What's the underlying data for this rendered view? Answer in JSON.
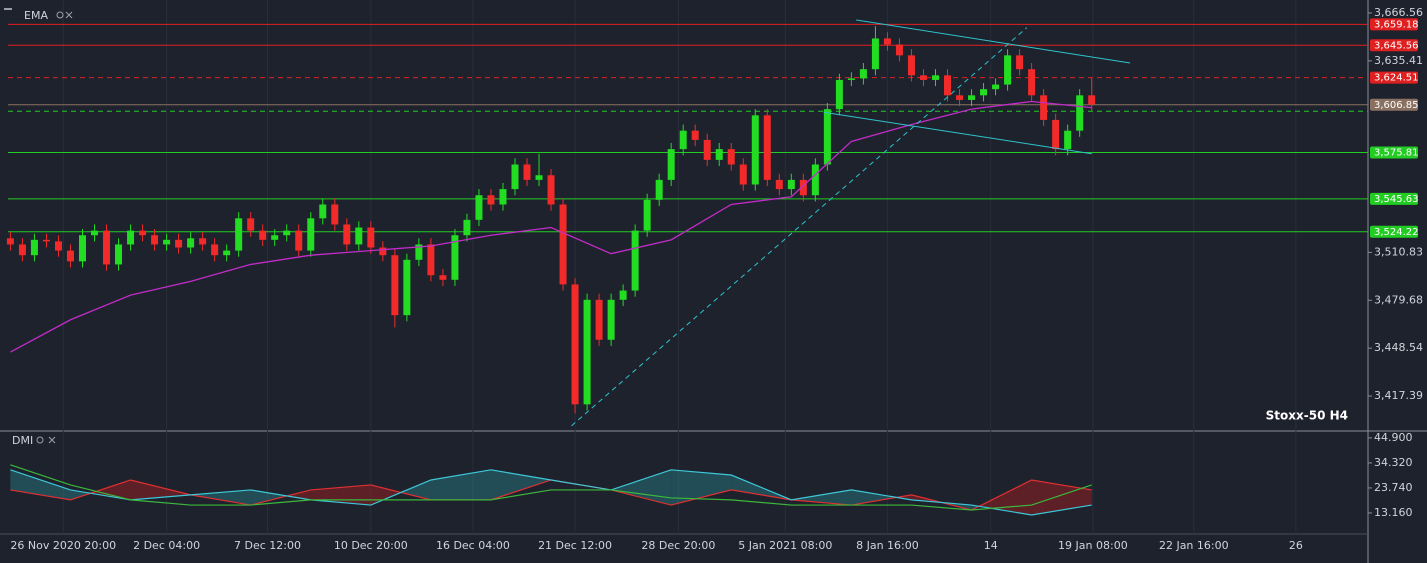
{
  "chart_data": [
    {
      "type": "candlestick",
      "title": "EMA",
      "annotation": "Stoxx-50 H4",
      "up_color": "#22dd22",
      "down_color": "#f22a2a",
      "open": [
        3520,
        3516,
        3509,
        3519,
        3518,
        3512,
        3505,
        3522,
        3525,
        3503,
        3516,
        3525,
        3522,
        3516,
        3519,
        3514,
        3520,
        3516,
        3509,
        3512,
        3533,
        3525,
        3519,
        3522,
        3525,
        3512,
        3533,
        3542,
        3529,
        3516,
        3527,
        3514,
        3509,
        3470,
        3506,
        3516,
        3496,
        3493,
        3522,
        3532,
        3548,
        3542,
        3552,
        3568,
        3558,
        3561,
        3542,
        3490,
        3412,
        3480,
        3454,
        3480,
        3486,
        3525,
        3545,
        3558,
        3578,
        3590,
        3584,
        3571,
        3578,
        3568,
        3555,
        3600,
        3558,
        3552,
        3558,
        3548,
        3568,
        3604,
        3623,
        3624,
        3630,
        3650,
        3646,
        3639,
        3626,
        3623,
        3626,
        3613,
        3610,
        3613,
        3617,
        3620,
        3639,
        3630,
        3613,
        3597,
        3578,
        3590,
        3613
      ],
      "high": [
        3524,
        3520,
        3523,
        3523,
        3522,
        3516,
        3526,
        3529,
        3529,
        3520,
        3529,
        3529,
        3526,
        3523,
        3523,
        3524,
        3524,
        3520,
        3516,
        3537,
        3537,
        3529,
        3526,
        3529,
        3529,
        3537,
        3546,
        3546,
        3533,
        3531,
        3531,
        3518,
        3513,
        3510,
        3520,
        3520,
        3500,
        3526,
        3536,
        3552,
        3552,
        3556,
        3572,
        3572,
        3575,
        3565,
        3546,
        3494,
        3484,
        3484,
        3484,
        3490,
        3529,
        3549,
        3562,
        3582,
        3594,
        3594,
        3588,
        3582,
        3582,
        3572,
        3604,
        3604,
        3562,
        3562,
        3562,
        3572,
        3608,
        3627,
        3628,
        3634,
        3658,
        3654,
        3650,
        3643,
        3630,
        3630,
        3630,
        3617,
        3617,
        3621,
        3624,
        3643,
        3643,
        3634,
        3617,
        3601,
        3594,
        3617,
        3624
      ],
      "low": [
        3512,
        3505,
        3505,
        3514,
        3508,
        3501,
        3501,
        3518,
        3499,
        3499,
        3512,
        3518,
        3512,
        3512,
        3510,
        3510,
        3512,
        3505,
        3505,
        3508,
        3521,
        3515,
        3515,
        3518,
        3508,
        3508,
        3529,
        3525,
        3512,
        3512,
        3510,
        3505,
        3462,
        3466,
        3502,
        3492,
        3489,
        3489,
        3518,
        3528,
        3538,
        3538,
        3548,
        3554,
        3554,
        3538,
        3486,
        3406,
        3408,
        3450,
        3450,
        3476,
        3482,
        3521,
        3541,
        3554,
        3574,
        3580,
        3567,
        3567,
        3564,
        3551,
        3551,
        3554,
        3548,
        3548,
        3544,
        3544,
        3564,
        3600,
        3619,
        3620,
        3626,
        3642,
        3635,
        3622,
        3619,
        3619,
        3609,
        3606,
        3606,
        3609,
        3613,
        3616,
        3626,
        3609,
        3593,
        3574,
        3574,
        3586,
        3603
      ],
      "close": [
        3516,
        3509,
        3519,
        3518,
        3512,
        3505,
        3522,
        3525,
        3503,
        3516,
        3525,
        3522,
        3516,
        3519,
        3514,
        3520,
        3516,
        3509,
        3512,
        3533,
        3525,
        3519,
        3522,
        3525,
        3512,
        3533,
        3542,
        3529,
        3516,
        3527,
        3514,
        3509,
        3470,
        3506,
        3516,
        3496,
        3493,
        3522,
        3532,
        3548,
        3542,
        3552,
        3568,
        3558,
        3561,
        3542,
        3490,
        3412,
        3480,
        3454,
        3480,
        3486,
        3525,
        3545,
        3558,
        3578,
        3590,
        3584,
        3571,
        3578,
        3568,
        3555,
        3600,
        3558,
        3552,
        3558,
        3548,
        3568,
        3604,
        3623,
        3624,
        3630,
        3650,
        3646,
        3639,
        3626,
        3623,
        3626,
        3613,
        3610,
        3613,
        3617,
        3620,
        3639,
        3630,
        3613,
        3597,
        3578,
        3590,
        3613,
        3607
      ],
      "ema": {
        "color": "#c22cc8",
        "x": [
          0,
          5,
          10,
          15,
          20,
          25,
          30,
          35,
          40,
          45,
          50,
          55,
          60,
          65,
          70,
          75,
          80,
          85,
          90
        ],
        "values": [
          3446,
          3467,
          3483,
          3492,
          3503,
          3509,
          3512,
          3515,
          3522,
          3527,
          3510,
          3519,
          3542,
          3547,
          3583,
          3594,
          3604,
          3609,
          3605
        ]
      },
      "levels": [
        {
          "value": 3659.18,
          "label": "3,659.18",
          "color": "#e02020",
          "dashed": false
        },
        {
          "value": 3645.56,
          "label": "3,645.56",
          "color": "#e02020",
          "dashed": false
        },
        {
          "value": 3624.51,
          "label": "3,624.51",
          "color": "#e02020",
          "dashed": true
        },
        {
          "value": 3606.85,
          "label": "3,606.85",
          "color": "#8a7060",
          "dashed": false
        },
        {
          "value": 3602.6,
          "color": "#22cc22",
          "dashed": true
        },
        {
          "value": 3575.81,
          "label": "3,575.81",
          "color": "#22cc22",
          "dashed": false
        },
        {
          "value": 3545.63,
          "label": "3,545.63",
          "color": "#22cc22",
          "dashed": false
        },
        {
          "value": 3524.22,
          "label": "3,524.22",
          "color": "#22cc22",
          "dashed": false
        }
      ],
      "trendlines": [
        {
          "color": "#2ec4cc",
          "dashed": false,
          "x": [
            70.4,
            93.2
          ],
          "values": [
            3662,
            3634
          ]
        },
        {
          "color": "#2ec4cc",
          "dashed": false,
          "x": [
            67.7,
            90
          ],
          "values": [
            3602,
            3575
          ]
        },
        {
          "color": "#2ec4cc",
          "dashed": true,
          "x": [
            46.7,
            84.6
          ],
          "values": [
            3398,
            3657
          ]
        }
      ],
      "xlim": [
        -0.2,
        113
      ],
      "ylim": [
        3395.3,
        3669.8
      ],
      "yticks": [
        {
          "value": 3666.56,
          "label": "3,666.56"
        },
        {
          "value": 3635.41,
          "label": "3,635.41"
        },
        {
          "value": 3510.83,
          "label": "3,510.83"
        },
        {
          "value": 3479.68,
          "label": "3,479.68"
        },
        {
          "value": 3448.54,
          "label": "3,448.54"
        },
        {
          "value": 3417.39,
          "label": "3,417.39"
        }
      ]
    },
    {
      "type": "line",
      "title": "DMI",
      "x": [
        0,
        5,
        10,
        15,
        20,
        25,
        30,
        35,
        40,
        45,
        50,
        55,
        60,
        65,
        70,
        75,
        80,
        85,
        90
      ],
      "series": [
        {
          "color": "#e03030",
          "values": [
            22.9,
            18.7,
            27.1,
            20.8,
            16.5,
            22.9,
            25.0,
            18.7,
            18.7,
            27.1,
            22.9,
            16.5,
            22.9,
            18.7,
            16.5,
            20.8,
            14.4,
            27.1,
            22.9
          ]
        },
        {
          "color": "#3cc8d8",
          "values": [
            31.4,
            22.9,
            18.7,
            20.8,
            22.9,
            18.7,
            16.5,
            27.1,
            31.4,
            27.1,
            22.9,
            31.4,
            29.2,
            18.7,
            22.9,
            18.7,
            16.5,
            12.3,
            16.5
          ]
        },
        {
          "color": "#3cb83c",
          "values": [
            33.5,
            25.0,
            18.7,
            16.5,
            16.5,
            18.7,
            18.7,
            18.7,
            18.7,
            22.9,
            22.9,
            19.5,
            18.7,
            16.5,
            16.5,
            16.5,
            14.4,
            16.5,
            25.0
          ]
        }
      ],
      "xlim": [
        -0.2,
        113
      ],
      "ylim": [
        5.1,
        47.4
      ],
      "yticks": [
        {
          "value": 44.9,
          "label": "44.900"
        },
        {
          "value": 34.32,
          "label": "34.320"
        },
        {
          "value": 23.74,
          "label": "23.740"
        },
        {
          "value": 13.16,
          "label": "13.160"
        }
      ],
      "xticks": [
        {
          "value": 4.4,
          "label": "26 Nov 2020 20:00"
        },
        {
          "value": 13,
          "label": "2 Dec 04:00"
        },
        {
          "value": 21.4,
          "label": "7 Dec 12:00"
        },
        {
          "value": 30,
          "label": "10 Dec 20:00"
        },
        {
          "value": 38.5,
          "label": "16 Dec 04:00"
        },
        {
          "value": 47,
          "label": "21 Dec 12:00"
        },
        {
          "value": 55.6,
          "label": "28 Dec 20:00"
        },
        {
          "value": 64.5,
          "label": "5 Jan 2021 08:00"
        },
        {
          "value": 73,
          "label": "8 Jan 16:00"
        },
        {
          "value": 81.6,
          "label": "14"
        },
        {
          "value": 90.1,
          "label": "19 Jan 08:00"
        },
        {
          "value": 98.5,
          "label": "22 Jan 16:00"
        },
        {
          "value": 107,
          "label": "26"
        }
      ]
    }
  ]
}
